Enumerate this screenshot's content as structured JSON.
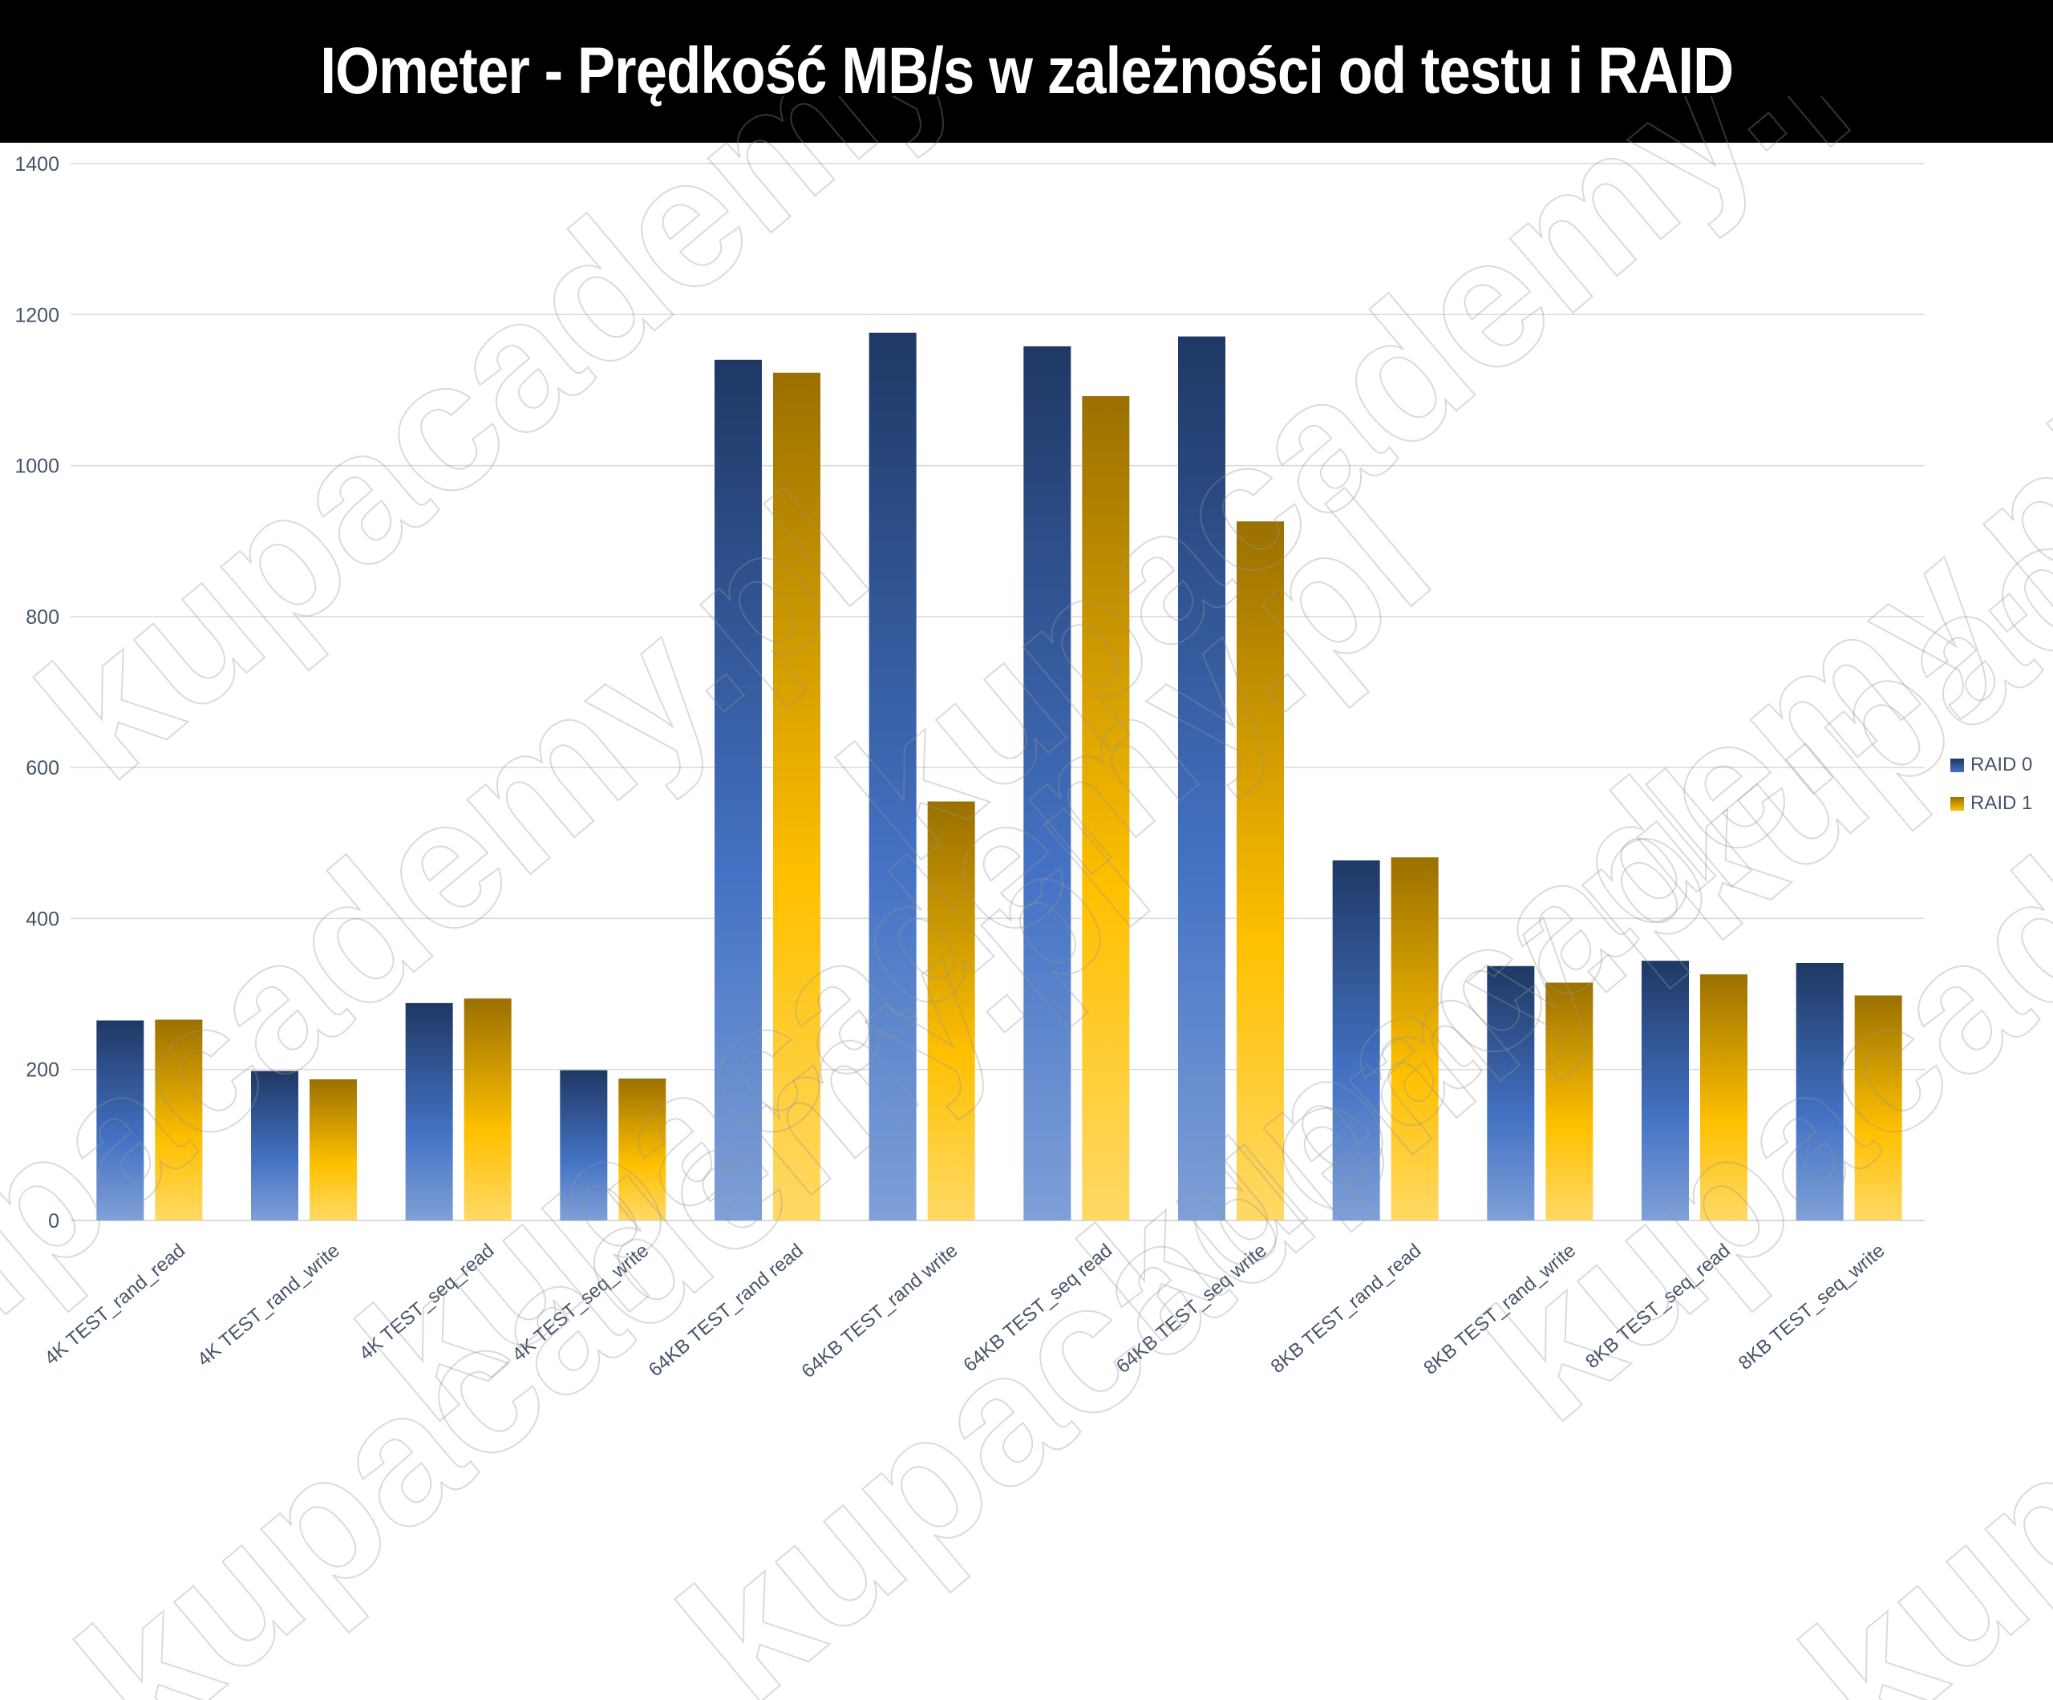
{
  "title": "IOmeter - Prędkość MB/s w zależności od testu i RAID",
  "watermark": "kupacademy.pl",
  "colors": {
    "raid0_top": "#1f3864",
    "raid0_bottom": "#7fa0d8",
    "raid0_mid": "#4472c4",
    "raid1_top": "#9a7000",
    "raid1_bottom": "#ffd966",
    "raid1_mid": "#ffc000",
    "grid": "#d9d9d9",
    "axis_text": "#44546a"
  },
  "chart_data": {
    "type": "bar",
    "title": "IOmeter - Prędkość MB/s w zależności od testu i RAID",
    "xlabel": "",
    "ylabel": "",
    "ylim": [
      0,
      1400
    ],
    "yticks": [
      "0",
      "200",
      "400",
      "600",
      "800",
      "1000",
      "1200",
      "1400"
    ],
    "grid": true,
    "legend_position": "right",
    "categories": [
      "4K TEST_rand_read",
      "4K TEST_rand_write",
      "4K TEST_seq_read",
      "4K TEST_seq_write",
      "64KB TEST_rand read",
      "64KB TEST_rand write",
      "64KB TEST_seq read",
      "64KB TEST_seq write",
      "8KB TEST_rand_read",
      "8KB TEST_rand_write",
      "8KB TEST_seq_read",
      "8KB TEST_seq_write"
    ],
    "series": [
      {
        "name": "RAID 0",
        "values": [
          265,
          198,
          288,
          199,
          1140,
          1176,
          1158,
          1171,
          477,
          337,
          344,
          341
        ]
      },
      {
        "name": "RAID 1",
        "values": [
          266,
          187,
          294,
          188,
          1123,
          555,
          1092,
          926,
          481,
          315,
          326,
          298
        ]
      }
    ]
  }
}
